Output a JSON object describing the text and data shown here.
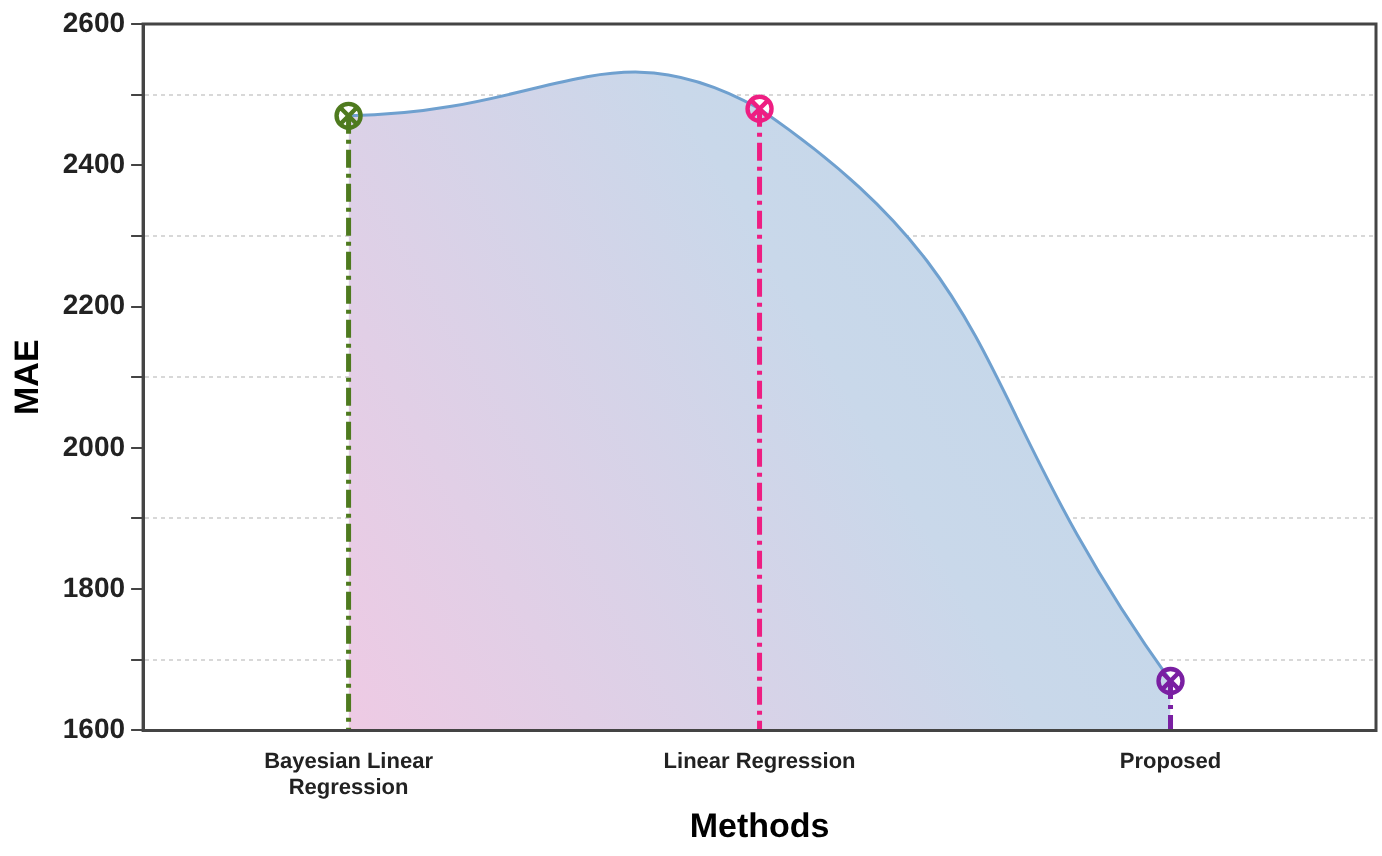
{
  "chart_data": {
    "type": "area",
    "xlabel": "Methods",
    "ylabel": "MAE",
    "categories": [
      "Bayesian Linear Regression",
      "Linear Regression",
      "Proposed"
    ],
    "series": [
      {
        "color": "#6fa0cf",
        "values": [
          2470,
          2480,
          1670
        ],
        "marker": "none"
      },
      {
        "type": "lollipop",
        "colors": [
          "#4e7a1e",
          "#ee1e82",
          "#7a1fa2"
        ],
        "values": [
          2470,
          2480,
          1670
        ],
        "line_style": "dashed"
      }
    ],
    "ylim": [
      1600,
      2600
    ],
    "yticks": [
      1600,
      {
        "value": 1700,
        "label": null
      },
      1800,
      {
        "value": 1900,
        "label": null
      },
      2000,
      {
        "value": 2100,
        "label": null
      },
      2200,
      {
        "value": 2300,
        "label": null
      },
      2400,
      {
        "value": 2500,
        "label": null
      },
      2600
    ],
    "grid": "y",
    "marker": "cross",
    "legend": false
  }
}
